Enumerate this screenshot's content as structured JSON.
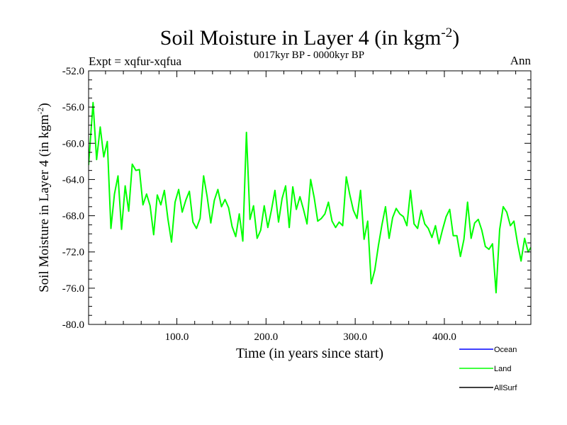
{
  "chart_data": {
    "type": "line",
    "title_main": "Soil Moisture in Layer 4 (in kgm",
    "title_sup": "-2",
    "title_close": ")",
    "subtitle": "0017kyr BP - 0000kyr BP",
    "expt_label": "Expt = xqfur-xqfua",
    "season_label": "Ann",
    "xlabel": "Time (in years since start)",
    "ylabel_main": "Soil Moisture in Layer 4 (in kgm",
    "ylabel_sup": "-2",
    "ylabel_close": ")",
    "xlim": [
      1,
      497
    ],
    "ylim": [
      -80,
      -52
    ],
    "xticks": [
      100,
      200,
      300,
      400
    ],
    "xtick_labels": [
      "100.0",
      "200.0",
      "300.0",
      "400.0"
    ],
    "yticks": [
      -80,
      -76,
      -72,
      -68,
      -64,
      -60,
      -56,
      -52
    ],
    "ytick_labels": [
      "-80.0",
      "-76.0",
      "-72.0",
      "-68.0",
      "-64.0",
      "-60.0",
      "-56.0",
      "-52.0"
    ],
    "legend": [
      {
        "name": "Ocean",
        "color": "#0000ff"
      },
      {
        "name": "Land",
        "color": "#00ff00"
      },
      {
        "name": "AllSurf",
        "color": "#000000"
      }
    ],
    "series": [
      {
        "name": "Land",
        "color": "#00ff00",
        "x": [
          1,
          6,
          10,
          14,
          18,
          22,
          26,
          30,
          34,
          38,
          42,
          46,
          50,
          54,
          58,
          62,
          66,
          70,
          74,
          78,
          82,
          86,
          90,
          94,
          98,
          102,
          106,
          110,
          114,
          118,
          122,
          126,
          130,
          134,
          138,
          142,
          146,
          150,
          154,
          158,
          162,
          166,
          170,
          174,
          178,
          182,
          186,
          190,
          194,
          198,
          202,
          206,
          210,
          214,
          218,
          222,
          226,
          230,
          234,
          238,
          242,
          246,
          250,
          254,
          258,
          262,
          266,
          270,
          274,
          278,
          282,
          286,
          290,
          294,
          298,
          302,
          306,
          310,
          314,
          318,
          322,
          326,
          330,
          334,
          338,
          342,
          346,
          350,
          354,
          358,
          362,
          366,
          370,
          374,
          378,
          382,
          386,
          390,
          394,
          398,
          402,
          406,
          410,
          414,
          418,
          422,
          426,
          430,
          434,
          438,
          442,
          446,
          450,
          454,
          458,
          462,
          466,
          470,
          474,
          478,
          482,
          486,
          490,
          494,
          497
        ],
        "values": [
          -62.4,
          -55.5,
          -61.8,
          -58.2,
          -61.5,
          -59.8,
          -69.4,
          -65.6,
          -63.6,
          -69.5,
          -64.7,
          -67.5,
          -62.3,
          -63.0,
          -62.9,
          -66.8,
          -65.6,
          -66.9,
          -70.1,
          -65.7,
          -66.8,
          -65.2,
          -68.4,
          -70.9,
          -66.5,
          -65.1,
          -67.6,
          -66.3,
          -65.3,
          -68.7,
          -69.4,
          -68.3,
          -63.6,
          -65.9,
          -68.8,
          -66.3,
          -65.1,
          -67.0,
          -66.2,
          -67.1,
          -69.2,
          -70.3,
          -67.8,
          -70.8,
          -58.8,
          -68.4,
          -66.9,
          -70.5,
          -69.6,
          -66.9,
          -69.3,
          -67.4,
          -65.2,
          -68.7,
          -66.1,
          -64.7,
          -69.3,
          -64.8,
          -67.3,
          -65.9,
          -67.3,
          -68.9,
          -64.0,
          -66.0,
          -68.6,
          -68.3,
          -67.8,
          -66.5,
          -68.6,
          -69.3,
          -68.7,
          -69.1,
          -63.7,
          -65.7,
          -67.4,
          -68.3,
          -65.2,
          -70.6,
          -68.6,
          -75.5,
          -74.0,
          -71.3,
          -69.0,
          -67.0,
          -70.5,
          -68.2,
          -67.2,
          -67.8,
          -68.1,
          -69.1,
          -65.2,
          -68.9,
          -69.4,
          -67.4,
          -68.9,
          -69.4,
          -70.4,
          -69.1,
          -71.1,
          -69.5,
          -68.1,
          -67.3,
          -70.2,
          -70.2,
          -72.5,
          -70.6,
          -66.5,
          -70.5,
          -68.8,
          -68.4,
          -69.6,
          -71.4,
          -71.7,
          -71.1,
          -76.5,
          -69.5,
          -67.0,
          -67.6,
          -69.1,
          -68.6,
          -71.0,
          -73.0,
          -70.5,
          -72.0,
          -71.5
        ]
      }
    ]
  }
}
